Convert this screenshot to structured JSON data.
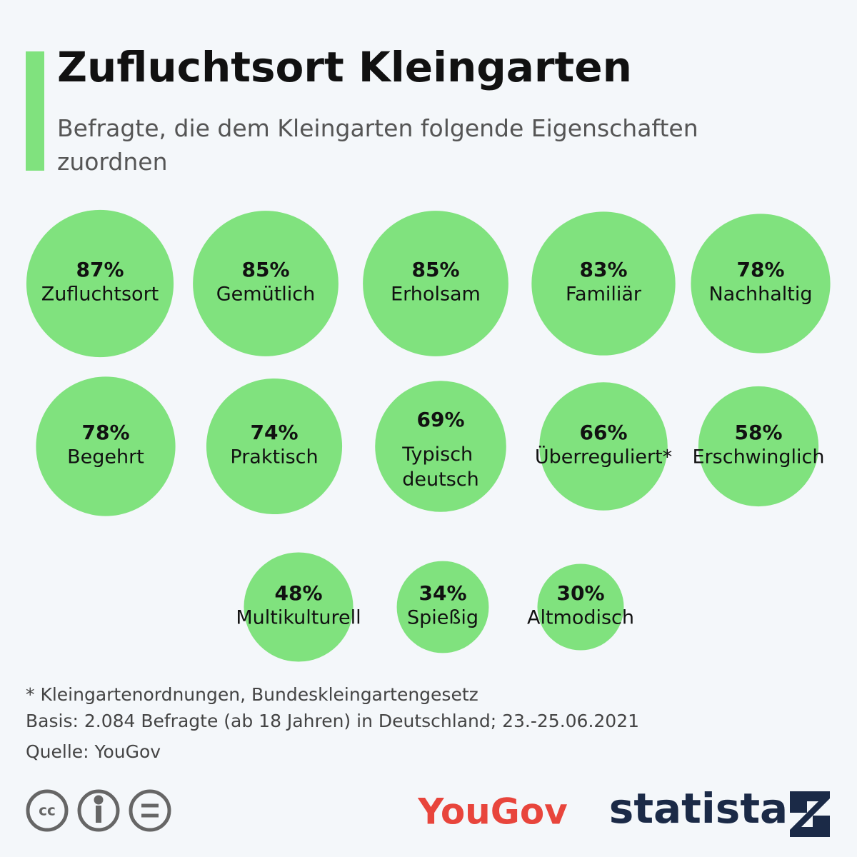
{
  "chart_data": {
    "type": "bubble",
    "title": "Zufluchtsort Kleingarten",
    "subtitle": "Befragte, die dem Kleingarten folgende Eigenschaften zuordnen",
    "categories": [
      "Zufluchtsort",
      "Gemütlich",
      "Erholsam",
      "Familiär",
      "Nachhaltig",
      "Begehrt",
      "Praktisch",
      "Typisch deutsch",
      "Überreguliert*",
      "Erschwinglich",
      "Multikulturell",
      "Spießig",
      "Altmodisch"
    ],
    "values": [
      87,
      85,
      85,
      83,
      78,
      78,
      74,
      69,
      66,
      58,
      48,
      34,
      30
    ],
    "value_labels": [
      "87%",
      "85%",
      "85%",
      "83%",
      "78%",
      "78%",
      "74%",
      "69%",
      "66%",
      "58%",
      "48%",
      "34%",
      "30%"
    ],
    "color": "#80e27e",
    "footnote": "* Kleingartenordnungen, Bundeskleingartengesetz",
    "note": "Basis: 2.084 Befragte (ab 18 Jahren) in Deutschland; 23.-25.06.2021",
    "source": "Quelle: YouGov"
  },
  "logos": [
    "YouGov",
    "statista"
  ]
}
